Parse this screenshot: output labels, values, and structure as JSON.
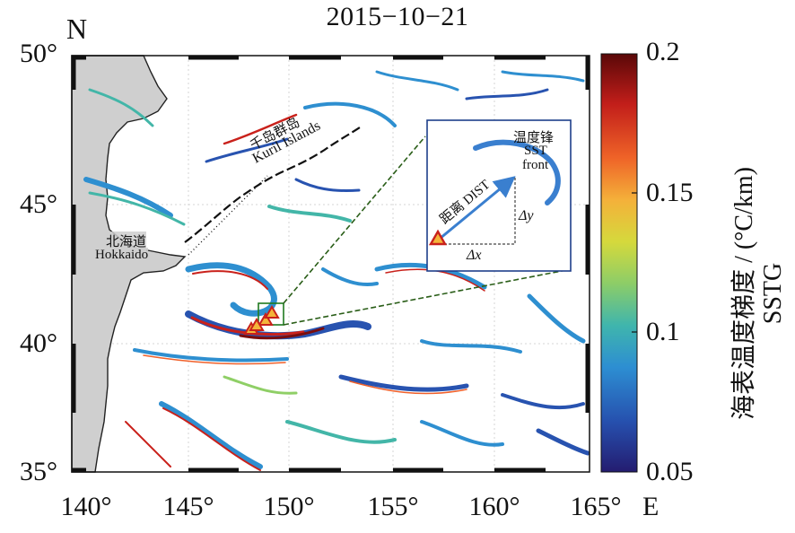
{
  "title": "2015−10−21",
  "north_label": "N",
  "lat_ticks": [
    "50°",
    "45°",
    "40°",
    "35°"
  ],
  "lon_ticks": [
    "140°",
    "145°",
    "150°",
    "155°",
    "160°",
    "165°"
  ],
  "east_label": "E",
  "colorbar": {
    "ticks": [
      "0.2",
      "0.15",
      "0.1",
      "0.05"
    ],
    "label_cn": "海表温度梯度 / (°C/km)",
    "label_en": "SSTG",
    "colors": [
      "#7a0d0d",
      "#c9211b",
      "#f0602a",
      "#f4b43a",
      "#d7d93c",
      "#8fcf66",
      "#43b6a8",
      "#2e8fd0",
      "#2853b0",
      "#26217a"
    ]
  },
  "labels": {
    "kuril_cn": "千岛群岛",
    "kuril_en": "Kuril Islands",
    "hokkaido_cn": "北海道",
    "hokkaido_en": "Hokkaido"
  },
  "inset": {
    "front_cn": "温度锋",
    "front_en1": "SST",
    "front_en2": "front",
    "dist_label": "距离 DIST",
    "dy_label": "Δy",
    "dx_label": "Δx"
  }
}
